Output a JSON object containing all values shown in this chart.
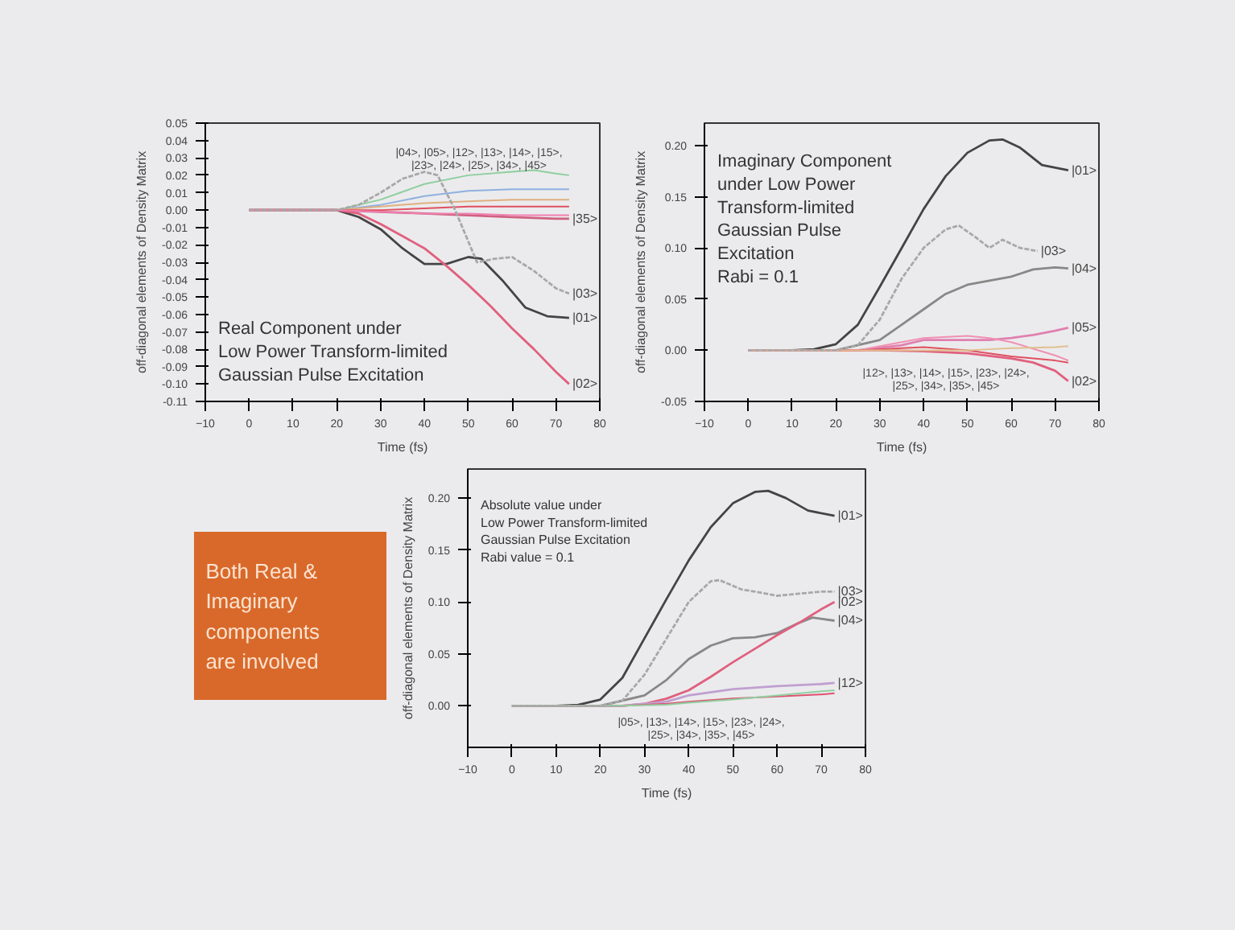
{
  "chart_data": [
    {
      "type": "line",
      "xlabel": "Time (fs)",
      "ylabel": "off-diagonal elements of Density Matrix",
      "xlim": [
        -10,
        80
      ],
      "xticks": [
        -10,
        0,
        10,
        20,
        30,
        40,
        50,
        60,
        70,
        80
      ],
      "ylim": [
        -0.11,
        0.05
      ],
      "yticks": [
        {
          "value": 0.05,
          "label": "0.05"
        },
        {
          "value": 0.04,
          "label": "0.04"
        },
        {
          "value": 0.03,
          "label": "0.03"
        },
        {
          "value": 0.02,
          "label": "0.02"
        },
        {
          "value": 0.01,
          "label": "0.01"
        },
        {
          "value": 0,
          "label": "0.00"
        },
        {
          "value": -0.01,
          "label": "-0.01"
        },
        {
          "value": -0.02,
          "label": "-0.02"
        },
        {
          "value": -0.03,
          "label": "-0.03"
        },
        {
          "value": -0.04,
          "label": "-0.04"
        },
        {
          "value": -0.05,
          "label": "-0.05"
        },
        {
          "value": -0.06,
          "label": "-0.06"
        },
        {
          "value": -0.07,
          "label": "-0.07"
        },
        {
          "value": -0.08,
          "label": "-0.08"
        },
        {
          "value": -0.09,
          "label": "-0.09"
        },
        {
          "value": -0.1,
          "label": "-0.10"
        },
        {
          "value": -0.11,
          "label": "-0.11"
        }
      ],
      "grid": false,
      "legend": false,
      "marker": "none",
      "line_style": "solid",
      "annotations": [
        "Real Component under\nLow Power Transform-limited\nGaussian Pulse Excitation",
        "|04>, |05>, |12>, |13>, |14>, |15>,\n|23>, |24>, |25>, |34>, |45>"
      ],
      "series": [
        {
          "name": "|01>",
          "color": "#444444",
          "x": [
            0,
            10,
            20,
            25,
            30,
            35,
            40,
            45,
            50,
            53,
            58,
            63,
            68,
            73
          ],
          "values": [
            0,
            0,
            0,
            -0.004,
            -0.011,
            -0.022,
            -0.031,
            -0.031,
            -0.027,
            -0.028,
            -0.041,
            -0.056,
            -0.061,
            -0.062
          ]
        },
        {
          "name": "|02>",
          "color": "#e0607e",
          "x": [
            0,
            10,
            20,
            25,
            30,
            35,
            40,
            45,
            50,
            55,
            60,
            65,
            70,
            73
          ],
          "values": [
            0,
            0,
            0,
            -0.002,
            -0.008,
            -0.015,
            -0.022,
            -0.032,
            -0.043,
            -0.055,
            -0.068,
            -0.08,
            -0.093,
            -0.1
          ]
        },
        {
          "name": "|03>",
          "color": "#a8a8a8",
          "line_style": "dashed",
          "x": [
            0,
            20,
            25,
            30,
            35,
            40,
            43,
            47,
            52,
            56,
            60,
            65,
            70,
            73
          ],
          "values": [
            0,
            0,
            0.003,
            0.01,
            0.018,
            0.022,
            0.02,
            0.0,
            -0.03,
            -0.028,
            -0.027,
            -0.035,
            -0.045,
            -0.048
          ]
        },
        {
          "name": "|35>",
          "color": "#d06080",
          "x": [
            0,
            20,
            30,
            40,
            50,
            60,
            70,
            73
          ],
          "values": [
            0,
            0,
            -0.001,
            -0.002,
            -0.003,
            -0.004,
            -0.005,
            -0.005
          ]
        },
        {
          "color": "#8fcf9f",
          "x": [
            0,
            20,
            30,
            40,
            50,
            60,
            65,
            70,
            73
          ],
          "values": [
            0,
            0,
            0.006,
            0.015,
            0.02,
            0.022,
            0.023,
            0.021,
            0.02
          ]
        },
        {
          "color": "#90b0e0",
          "x": [
            0,
            20,
            30,
            40,
            50,
            60,
            65,
            70,
            73
          ],
          "values": [
            0,
            0,
            0.003,
            0.008,
            0.011,
            0.012,
            0.012,
            0.012,
            0.012
          ]
        },
        {
          "color": "#e0b080",
          "x": [
            0,
            20,
            30,
            40,
            50,
            60,
            65,
            70,
            73
          ],
          "values": [
            0,
            0,
            0.002,
            0.004,
            0.005,
            0.006,
            0.006,
            0.006,
            0.006
          ]
        },
        {
          "color": "#e05060",
          "x": [
            0,
            20,
            30,
            40,
            50,
            60,
            65,
            70,
            73
          ],
          "values": [
            0,
            0,
            0,
            0.001,
            0.002,
            0.002,
            0.002,
            0.002,
            0.002
          ]
        },
        {
          "color": "#f080b0",
          "x": [
            0,
            20,
            30,
            40,
            50,
            60,
            65,
            70,
            73
          ],
          "values": [
            0,
            0,
            -0.001,
            -0.002,
            -0.002,
            -0.003,
            -0.003,
            -0.003,
            -0.003
          ]
        }
      ]
    },
    {
      "type": "line",
      "xlabel": "Time (fs)",
      "ylabel": "off-diagonal elements of Density Matrix",
      "xlim": [
        -10,
        80
      ],
      "xticks": [
        -10,
        0,
        10,
        20,
        30,
        40,
        50,
        60,
        70,
        80
      ],
      "ylim": [
        -0.05,
        0.222
      ],
      "yticks": [
        {
          "value": -0.05,
          "label": "-0.05"
        },
        {
          "value": 0,
          "label": "0.00"
        },
        {
          "value": 0.05,
          "label": "0.05"
        },
        {
          "value": 0.1,
          "label": "0.10"
        },
        {
          "value": 0.15,
          "label": "0.15"
        },
        {
          "value": 0.2,
          "label": "0.20"
        }
      ],
      "grid": false,
      "legend": false,
      "marker": "none",
      "line_style": "solid",
      "annotations": [
        "Imaginary Component\nunder Low Power\nTransform-limited\nGaussian Pulse\nExcitation\nRabi  = 0.1",
        "|12>, |13>, |14>, |15>, |23>, |24>,\n|25>, |34>, |35>, |45>"
      ],
      "series": [
        {
          "name": "|01>",
          "color": "#444444",
          "x": [
            0,
            10,
            15,
            20,
            25,
            30,
            35,
            40,
            45,
            50,
            55,
            58,
            62,
            67,
            73
          ],
          "values": [
            0,
            0,
            0.001,
            0.006,
            0.025,
            0.062,
            0.1,
            0.138,
            0.17,
            0.193,
            0.205,
            0.206,
            0.198,
            0.181,
            0.176
          ]
        },
        {
          "name": "|03>",
          "color": "#a8a8a8",
          "line_style": "dashed",
          "x": [
            0,
            20,
            25,
            30,
            35,
            40,
            45,
            48,
            52,
            55,
            58,
            62,
            66
          ],
          "values": [
            0,
            0,
            0.005,
            0.03,
            0.07,
            0.1,
            0.118,
            0.122,
            0.11,
            0.1,
            0.108,
            0.1,
            0.097
          ]
        },
        {
          "name": "|04>",
          "color": "#888888",
          "x": [
            0,
            20,
            30,
            35,
            40,
            45,
            50,
            55,
            60,
            65,
            70,
            73
          ],
          "values": [
            0,
            0,
            0.01,
            0.025,
            0.04,
            0.055,
            0.064,
            0.068,
            0.072,
            0.079,
            0.081,
            0.08
          ]
        },
        {
          "name": "|05>",
          "color": "#e080b0",
          "x": [
            0,
            25,
            35,
            40,
            50,
            55,
            60,
            65,
            70,
            73
          ],
          "values": [
            0,
            0,
            0.005,
            0.01,
            0.01,
            0.01,
            0.012,
            0.015,
            0.019,
            0.022
          ]
        },
        {
          "name": "|02>",
          "color": "#e0607e",
          "x": [
            0,
            30,
            40,
            50,
            60,
            65,
            70,
            73
          ],
          "values": [
            0,
            0,
            -0.001,
            -0.003,
            -0.008,
            -0.012,
            -0.02,
            -0.03
          ]
        },
        {
          "color": "#f090b0",
          "x": [
            0,
            25,
            35,
            40,
            50,
            55,
            60,
            70,
            73
          ],
          "values": [
            0,
            0,
            0.008,
            0.012,
            0.014,
            0.012,
            0.008,
            -0.005,
            -0.01
          ]
        },
        {
          "color": "#e05060",
          "x": [
            0,
            25,
            35,
            40,
            50,
            55,
            60,
            70,
            73
          ],
          "values": [
            0,
            0,
            0.002,
            0.003,
            0,
            -0.003,
            -0.006,
            -0.01,
            -0.012
          ]
        },
        {
          "color": "#e0c090",
          "x": [
            0,
            25,
            35,
            40,
            50,
            55,
            60,
            70,
            73
          ],
          "values": [
            0,
            0,
            0,
            0,
            0,
            0.001,
            0.002,
            0.003,
            0.004
          ]
        }
      ]
    },
    {
      "type": "other",
      "title": "Both Real &\nImaginary\ncomponents\nare involved"
    },
    {
      "type": "line",
      "xlabel": "Time (fs)",
      "ylabel": "off-diagonal elements of Density Matrix",
      "xlim": [
        -10,
        80
      ],
      "xticks": [
        -10,
        0,
        10,
        20,
        30,
        40,
        50,
        60,
        70,
        80
      ],
      "ylim": [
        -0.04,
        0.228
      ],
      "yticks": [
        {
          "value": 0,
          "label": "0.00"
        },
        {
          "value": 0.05,
          "label": "0.05"
        },
        {
          "value": 0.1,
          "label": "0.10"
        },
        {
          "value": 0.15,
          "label": "0.15"
        },
        {
          "value": 0.2,
          "label": "0.20"
        }
      ],
      "grid": false,
      "legend": false,
      "marker": "none",
      "line_style": "solid",
      "annotations": [
        "Absolute value under\nLow Power Transform-limited\nGaussian Pulse Excitation\nRabi value = 0.1",
        "|05>, |13>, |14>, |15>, |23>, |24>,\n|25>, |34>, |35>, |45>"
      ],
      "series": [
        {
          "name": "|01>",
          "color": "#444444",
          "x": [
            0,
            10,
            15,
            20,
            25,
            30,
            35,
            40,
            45,
            50,
            55,
            58,
            62,
            67,
            73
          ],
          "values": [
            0,
            0,
            0.001,
            0.006,
            0.027,
            0.065,
            0.103,
            0.14,
            0.172,
            0.195,
            0.206,
            0.207,
            0.2,
            0.188,
            0.183
          ]
        },
        {
          "name": "|03>",
          "color": "#a8a8a8",
          "line_style": "dashed",
          "x": [
            0,
            20,
            25,
            30,
            35,
            40,
            45,
            47,
            52,
            55,
            60,
            65,
            70,
            73
          ],
          "values": [
            0,
            0,
            0.005,
            0.03,
            0.065,
            0.1,
            0.12,
            0.121,
            0.112,
            0.11,
            0.106,
            0.108,
            0.11,
            0.11
          ]
        },
        {
          "name": "|04>",
          "color": "#888888",
          "x": [
            0,
            20,
            30,
            35,
            40,
            45,
            50,
            55,
            60,
            65,
            68,
            73
          ],
          "values": [
            0,
            0,
            0.01,
            0.025,
            0.045,
            0.058,
            0.065,
            0.066,
            0.07,
            0.08,
            0.085,
            0.082
          ]
        },
        {
          "name": "|02>",
          "color": "#e0607e",
          "x": [
            0,
            25,
            30,
            35,
            40,
            45,
            50,
            55,
            60,
            65,
            70,
            73
          ],
          "values": [
            0,
            0,
            0.002,
            0.007,
            0.015,
            0.028,
            0.042,
            0.055,
            0.068,
            0.08,
            0.093,
            0.1
          ]
        },
        {
          "name": "|12>",
          "color": "#c0a0d0",
          "x": [
            0,
            25,
            35,
            40,
            50,
            60,
            70,
            73
          ],
          "values": [
            0,
            0,
            0.004,
            0.01,
            0.016,
            0.019,
            0.021,
            0.022
          ]
        },
        {
          "color": "#e05070",
          "x": [
            0,
            25,
            35,
            40,
            50,
            60,
            70,
            73
          ],
          "values": [
            0,
            0,
            0.002,
            0.004,
            0.007,
            0.009,
            0.011,
            0.012
          ]
        },
        {
          "color": "#90d0a0",
          "x": [
            0,
            25,
            35,
            40,
            50,
            60,
            70,
            73
          ],
          "values": [
            0,
            0,
            0.001,
            0.003,
            0.006,
            0.01,
            0.014,
            0.015
          ]
        }
      ]
    }
  ]
}
